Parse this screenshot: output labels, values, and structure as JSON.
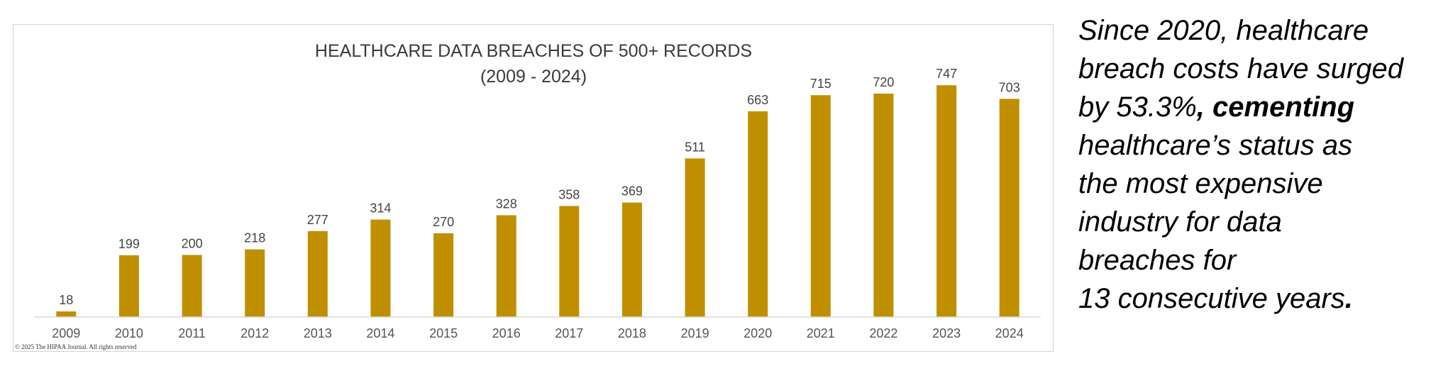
{
  "chart_data": {
    "type": "bar",
    "title": "HEALTHCARE DATA BREACHES OF 500+ RECORDS",
    "subtitle": "(2009 - 2024)",
    "categories": [
      "2009",
      "2010",
      "2011",
      "2012",
      "2013",
      "2014",
      "2015",
      "2016",
      "2017",
      "2018",
      "2019",
      "2020",
      "2021",
      "2022",
      "2023",
      "2024"
    ],
    "values": [
      18,
      199,
      200,
      218,
      277,
      314,
      270,
      328,
      358,
      369,
      511,
      663,
      715,
      720,
      747,
      703
    ],
    "data_labels": [
      "18",
      "199",
      "200",
      "218",
      "277",
      "314",
      "270",
      "328",
      "358",
      "369",
      "511",
      "663",
      "715",
      "720",
      "747",
      "703"
    ],
    "xlabel": "",
    "ylabel": "",
    "ylim": [
      0,
      800
    ],
    "grid": false,
    "bar_color": "#bf8f00",
    "baseline_color": "#d9d9d9"
  },
  "copyright": "© 2025 The HIPAA Journal. All rights reserved",
  "side_text": {
    "line1": "Since 2020, healthcare",
    "line2": "breach costs have surged",
    "line3_a": "by 53.3%",
    "line3_b": ", cementing",
    "line4": "healthcare’s status as",
    "line5": "the most expensive",
    "line6": "industry for data",
    "line7": "breaches for",
    "line8_a": "13 consecutive years",
    "line8_b": "."
  }
}
